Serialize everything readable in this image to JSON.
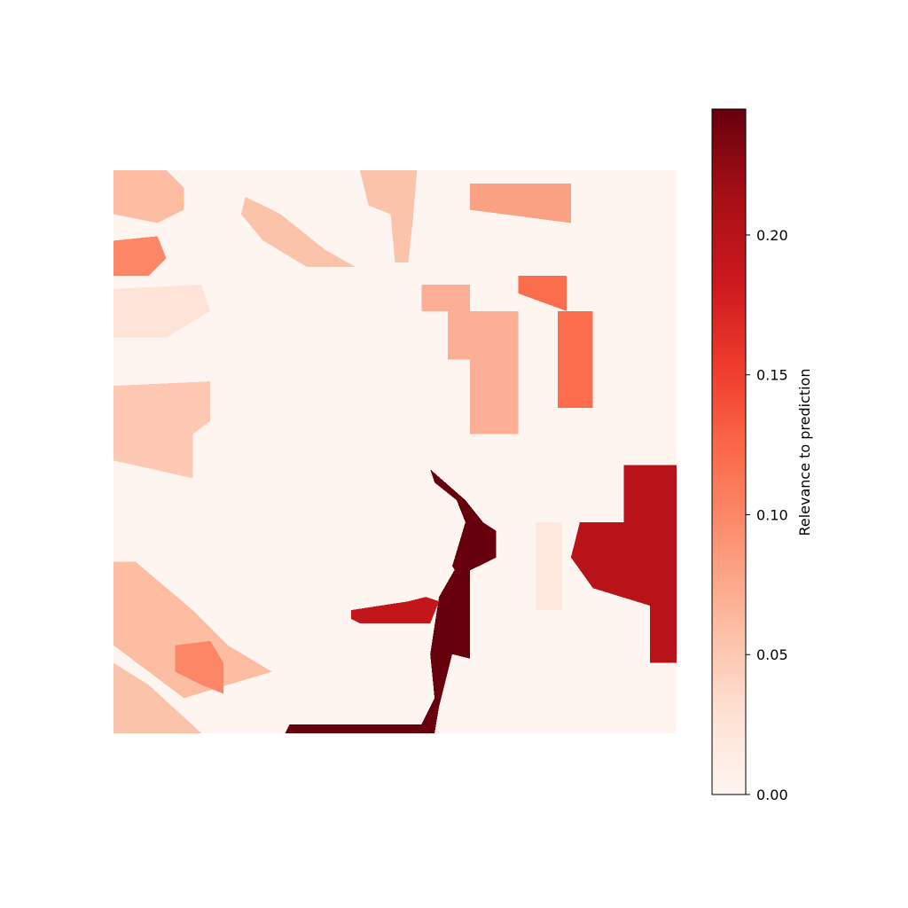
{
  "chart_data": {
    "type": "heatmap",
    "title": "",
    "axes_visible": false,
    "colormap": "Reds",
    "colormap_stops": [
      "#fff5f0",
      "#fee0d2",
      "#fcbba1",
      "#fc9272",
      "#fb6a4a",
      "#ef3b2c",
      "#cb181d",
      "#a50f15",
      "#67000d"
    ],
    "value_range": [
      0,
      0.245
    ],
    "colorbar": {
      "label": "Relevance to prediction",
      "ticks": [
        0.0,
        0.05,
        0.1,
        0.15,
        0.2
      ],
      "tick_labels": [
        "0.00",
        "0.05",
        "0.10",
        "0.15",
        "0.20"
      ]
    },
    "grid_size": [
      128,
      128
    ],
    "regions": [
      {
        "name": "top-left-streak",
        "value": 0.06,
        "cells": [
          [
            0,
            0
          ],
          [
            12,
            0
          ],
          [
            16,
            4
          ],
          [
            16,
            9
          ],
          [
            10,
            12
          ],
          [
            0,
            10
          ]
        ]
      },
      {
        "name": "left-mid-block",
        "value": 0.1,
        "cells": [
          [
            0,
            16
          ],
          [
            10,
            15
          ],
          [
            12,
            20
          ],
          [
            8,
            24
          ],
          [
            0,
            24
          ]
        ]
      },
      {
        "name": "upper-diagonal-streak",
        "value": 0.055,
        "cells": [
          [
            30,
            6
          ],
          [
            38,
            10
          ],
          [
            48,
            18
          ],
          [
            55,
            22
          ],
          [
            44,
            22
          ],
          [
            34,
            16
          ],
          [
            29,
            10
          ]
        ]
      },
      {
        "name": "top-center-blob",
        "value": 0.055,
        "cells": [
          [
            56,
            0
          ],
          [
            69,
            0
          ],
          [
            68,
            12
          ],
          [
            67,
            21
          ],
          [
            64,
            21
          ],
          [
            63,
            10
          ],
          [
            58,
            8
          ]
        ]
      },
      {
        "name": "top-right-bar",
        "value": 0.08,
        "cells": [
          [
            81,
            3
          ],
          [
            104,
            3
          ],
          [
            104,
            12
          ],
          [
            81,
            9
          ]
        ]
      },
      {
        "name": "upper-right-red",
        "value": 0.12,
        "cells": [
          [
            92,
            24
          ],
          [
            103,
            24
          ],
          [
            103,
            32
          ],
          [
            92,
            28
          ]
        ]
      },
      {
        "name": "center-rect",
        "value": 0.07,
        "cells": [
          [
            70,
            26
          ],
          [
            81,
            26
          ],
          [
            81,
            32
          ],
          [
            92,
            32
          ],
          [
            92,
            60
          ],
          [
            81,
            60
          ],
          [
            81,
            43
          ],
          [
            76,
            43
          ],
          [
            76,
            32
          ],
          [
            70,
            32
          ]
        ]
      },
      {
        "name": "right-vertical-bar",
        "value": 0.12,
        "cells": [
          [
            101,
            32
          ],
          [
            109,
            32
          ],
          [
            109,
            54
          ],
          [
            101,
            54
          ]
        ]
      },
      {
        "name": "left-middle-blob",
        "value": 0.05,
        "cells": [
          [
            0,
            49
          ],
          [
            22,
            48
          ],
          [
            22,
            57
          ],
          [
            18,
            60
          ],
          [
            18,
            70
          ],
          [
            0,
            66
          ]
        ]
      },
      {
        "name": "left-faint-block",
        "value": 0.025,
        "cells": [
          [
            0,
            27
          ],
          [
            20,
            26
          ],
          [
            22,
            32
          ],
          [
            12,
            38
          ],
          [
            0,
            38
          ]
        ]
      },
      {
        "name": "lower-left-streak",
        "value": 0.06,
        "cells": [
          [
            0,
            89
          ],
          [
            5,
            89
          ],
          [
            18,
            100
          ],
          [
            26,
            108
          ],
          [
            36,
            114
          ],
          [
            16,
            120
          ],
          [
            0,
            108
          ]
        ]
      },
      {
        "name": "lower-left-hot",
        "value": 0.1,
        "cells": [
          [
            14,
            108
          ],
          [
            22,
            107
          ],
          [
            25,
            112
          ],
          [
            25,
            119
          ],
          [
            20,
            117
          ],
          [
            14,
            114
          ]
        ]
      },
      {
        "name": "bottom-left-corner",
        "value": 0.055,
        "cells": [
          [
            0,
            112
          ],
          [
            8,
            117
          ],
          [
            20,
            128
          ],
          [
            0,
            128
          ]
        ]
      },
      {
        "name": "dark-curve-upper",
        "value": 0.245,
        "cells": [
          [
            72,
            68
          ],
          [
            80,
            75
          ],
          [
            84,
            80
          ],
          [
            87,
            82
          ],
          [
            87,
            88
          ],
          [
            83,
            90
          ],
          [
            81,
            91
          ],
          [
            79,
            93
          ],
          [
            77,
            90
          ],
          [
            80,
            80
          ],
          [
            78,
            75
          ],
          [
            73,
            71
          ]
        ]
      },
      {
        "name": "dark-curve-lower",
        "value": 0.245,
        "cells": [
          [
            74,
            97
          ],
          [
            78,
            90
          ],
          [
            81,
            91
          ],
          [
            81,
            111
          ],
          [
            77,
            110
          ],
          [
            74,
            122
          ],
          [
            73,
            128
          ],
          [
            39,
            128
          ],
          [
            40,
            126
          ],
          [
            70,
            126
          ],
          [
            73,
            120
          ],
          [
            72,
            110
          ]
        ]
      },
      {
        "name": "red-horizontal-streak",
        "value": 0.19,
        "cells": [
          [
            54,
            100
          ],
          [
            67,
            98
          ],
          [
            71,
            97
          ],
          [
            74,
            98
          ],
          [
            72,
            103
          ],
          [
            56,
            103
          ],
          [
            54,
            102
          ]
        ]
      },
      {
        "name": "right-red-block",
        "value": 0.2,
        "cells": [
          [
            116,
            67
          ],
          [
            128,
            67
          ],
          [
            128,
            112
          ],
          [
            122,
            112
          ],
          [
            122,
            99
          ],
          [
            109,
            95
          ],
          [
            104,
            88
          ],
          [
            106,
            80
          ],
          [
            116,
            80
          ]
        ]
      },
      {
        "name": "right-faint-column",
        "value": 0.02,
        "cells": [
          [
            96,
            80
          ],
          [
            102,
            80
          ],
          [
            102,
            100
          ],
          [
            96,
            100
          ]
        ]
      }
    ]
  }
}
